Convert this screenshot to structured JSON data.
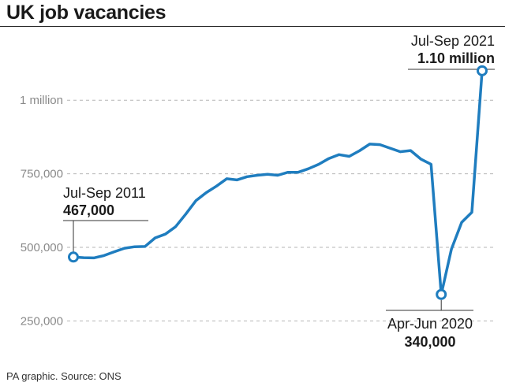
{
  "header": {
    "title": "UK job vacancies"
  },
  "footer": {
    "source": "PA graphic. Source: ONS"
  },
  "colors": {
    "line": "#1f7dbf",
    "grid": "#b5b5b5",
    "axis_text": "#8a8a8a",
    "annotation_rule": "#333333"
  },
  "chart_data": {
    "type": "line",
    "title": "UK job vacancies",
    "xlabel": "",
    "ylabel": "",
    "ylim": [
      160000,
      1220000
    ],
    "grid": true,
    "y_ticks": [
      {
        "value": 250000,
        "label": "250,000"
      },
      {
        "value": 500000,
        "label": "500,000"
      },
      {
        "value": 750000,
        "label": "750,000"
      },
      {
        "value": 1000000,
        "label": "1 million"
      }
    ],
    "x_start": "Jul-Sep 2011",
    "x_end": "Jul-Sep 2021",
    "series": [
      {
        "values": [
          467000,
          465000,
          464000,
          472000,
          485000,
          497000,
          502000,
          503000,
          532000,
          545000,
          570000,
          613000,
          659000,
          686000,
          708000,
          733000,
          729000,
          740000,
          745000,
          748000,
          745000,
          755000,
          755000,
          767000,
          782000,
          802000,
          815000,
          809000,
          828000,
          851000,
          849000,
          837000,
          825000,
          829000,
          800000,
          782000,
          340000,
          494000,
          585000,
          619000,
          1100000
        ]
      }
    ],
    "annotations": [
      {
        "point_index": 0,
        "label": "Jul-Sep 2011",
        "value_label": "467,000"
      },
      {
        "point_index": 36,
        "label": "Apr-Jun 2020",
        "value_label": "340,000"
      },
      {
        "point_index": 40,
        "label": "Jul-Sep 2021",
        "value_label": "1.10 million"
      }
    ]
  }
}
